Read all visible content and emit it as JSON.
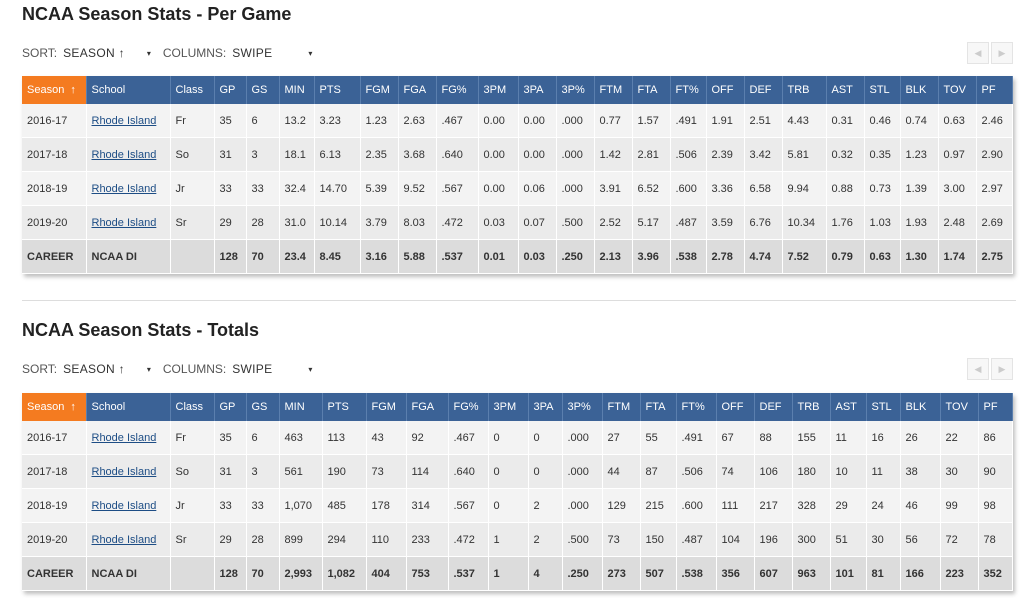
{
  "sections": [
    {
      "title": "NCAA Season Stats - Per Game",
      "sort_label": "SORT:",
      "sort_value": "SEASON ↑",
      "columns_label": "COLUMNS:",
      "columns_value": "SWIPE",
      "table": {
        "header": [
          "Season",
          "School",
          "Class",
          "GP",
          "GS",
          "MIN",
          "PTS",
          "FGM",
          "FGA",
          "FG%",
          "3PM",
          "3PA",
          "3P%",
          "FTM",
          "FTA",
          "FT%",
          "OFF",
          "DEF",
          "TRB",
          "AST",
          "STL",
          "BLK",
          "TOV",
          "PF"
        ],
        "sort_arrow": "↑",
        "rows": [
          [
            "2016-17",
            "Rhode Island",
            "Fr",
            "35",
            "6",
            "13.2",
            "3.23",
            "1.23",
            "2.63",
            ".467",
            "0.00",
            "0.00",
            ".000",
            "0.77",
            "1.57",
            ".491",
            "1.91",
            "2.51",
            "4.43",
            "0.31",
            "0.46",
            "0.74",
            "0.63",
            "2.46"
          ],
          [
            "2017-18",
            "Rhode Island",
            "So",
            "31",
            "3",
            "18.1",
            "6.13",
            "2.35",
            "3.68",
            ".640",
            "0.00",
            "0.00",
            ".000",
            "1.42",
            "2.81",
            ".506",
            "2.39",
            "3.42",
            "5.81",
            "0.32",
            "0.35",
            "1.23",
            "0.97",
            "2.90"
          ],
          [
            "2018-19",
            "Rhode Island",
            "Jr",
            "33",
            "33",
            "32.4",
            "14.70",
            "5.39",
            "9.52",
            ".567",
            "0.00",
            "0.06",
            ".000",
            "3.91",
            "6.52",
            ".600",
            "3.36",
            "6.58",
            "9.94",
            "0.88",
            "0.73",
            "1.39",
            "3.00",
            "2.97"
          ],
          [
            "2019-20",
            "Rhode Island",
            "Sr",
            "29",
            "28",
            "31.0",
            "10.14",
            "3.79",
            "8.03",
            ".472",
            "0.03",
            "0.07",
            ".500",
            "2.52",
            "5.17",
            ".487",
            "3.59",
            "6.76",
            "10.34",
            "1.76",
            "1.03",
            "1.93",
            "2.48",
            "2.69"
          ],
          [
            "CAREER",
            "NCAA DI",
            "",
            "128",
            "70",
            "23.4",
            "8.45",
            "3.16",
            "5.88",
            ".537",
            "0.01",
            "0.03",
            ".250",
            "2.13",
            "3.96",
            ".538",
            "2.78",
            "4.74",
            "7.52",
            "0.79",
            "0.63",
            "1.30",
            "1.74",
            "2.75"
          ]
        ]
      }
    },
    {
      "title": "NCAA Season Stats - Totals",
      "sort_label": "SORT:",
      "sort_value": "SEASON ↑",
      "columns_label": "COLUMNS:",
      "columns_value": "SWIPE",
      "table": {
        "header": [
          "Season",
          "School",
          "Class",
          "GP",
          "GS",
          "MIN",
          "PTS",
          "FGM",
          "FGA",
          "FG%",
          "3PM",
          "3PA",
          "3P%",
          "FTM",
          "FTA",
          "FT%",
          "OFF",
          "DEF",
          "TRB",
          "AST",
          "STL",
          "BLK",
          "TOV",
          "PF"
        ],
        "sort_arrow": "↑",
        "rows": [
          [
            "2016-17",
            "Rhode Island",
            "Fr",
            "35",
            "6",
            "463",
            "113",
            "43",
            "92",
            ".467",
            "0",
            "0",
            ".000",
            "27",
            "55",
            ".491",
            "67",
            "88",
            "155",
            "11",
            "16",
            "26",
            "22",
            "86"
          ],
          [
            "2017-18",
            "Rhode Island",
            "So",
            "31",
            "3",
            "561",
            "190",
            "73",
            "114",
            ".640",
            "0",
            "0",
            ".000",
            "44",
            "87",
            ".506",
            "74",
            "106",
            "180",
            "10",
            "11",
            "38",
            "30",
            "90"
          ],
          [
            "2018-19",
            "Rhode Island",
            "Jr",
            "33",
            "33",
            "1,070",
            "485",
            "178",
            "314",
            ".567",
            "0",
            "2",
            ".000",
            "129",
            "215",
            ".600",
            "111",
            "217",
            "328",
            "29",
            "24",
            "46",
            "99",
            "98"
          ],
          [
            "2019-20",
            "Rhode Island",
            "Sr",
            "29",
            "28",
            "899",
            "294",
            "110",
            "233",
            ".472",
            "1",
            "2",
            ".500",
            "73",
            "150",
            ".487",
            "104",
            "196",
            "300",
            "51",
            "30",
            "56",
            "72",
            "78"
          ],
          [
            "CAREER",
            "NCAA DI",
            "",
            "128",
            "70",
            "2,993",
            "1,082",
            "404",
            "753",
            ".537",
            "1",
            "4",
            ".250",
            "273",
            "507",
            ".538",
            "356",
            "607",
            "963",
            "101",
            "81",
            "166",
            "223",
            "352"
          ]
        ]
      }
    }
  ]
}
